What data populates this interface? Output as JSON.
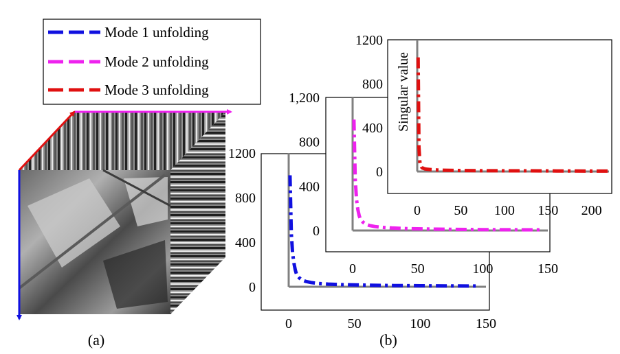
{
  "legend": {
    "entries": [
      {
        "label": "Mode 1 unfolding",
        "color": "#1010e0"
      },
      {
        "label": "Mode 2 unfolding",
        "color": "#ee22ee"
      },
      {
        "label": "Mode 3 unfolding",
        "color": "#e01010"
      }
    ]
  },
  "captions": {
    "a": "(a)",
    "b": "(b)"
  },
  "colors": {
    "axis": "#808080",
    "cube_x_arrow": "#ee22ee",
    "cube_y_arrow": "#e01010",
    "cube_z_arrow": "#1010e0"
  },
  "chart_data": [
    {
      "type": "line",
      "panel": "mode-1",
      "xlabel": "",
      "ylabel": "",
      "xlim": [
        0,
        150
      ],
      "ylim": [
        0,
        1200
      ],
      "xticks": [
        0,
        50,
        100,
        150
      ],
      "yticks": [
        0,
        400,
        800,
        1200
      ],
      "ytick_labels": [
        "0",
        "400",
        "800",
        "1200"
      ],
      "series": [
        {
          "x": [
            1,
            2,
            3,
            4,
            5,
            6,
            8,
            10,
            13,
            17,
            22,
            30,
            40,
            60,
            80,
            100,
            120,
            140,
            145
          ],
          "y": [
            1000,
            480,
            300,
            210,
            150,
            110,
            80,
            62,
            48,
            38,
            30,
            24,
            19,
            14,
            11,
            9,
            8,
            7,
            7
          ]
        }
      ]
    },
    {
      "type": "line",
      "panel": "mode-2",
      "xlabel": "",
      "ylabel": "",
      "xlim": [
        0,
        150
      ],
      "ylim": [
        0,
        1200
      ],
      "xticks": [
        0,
        50,
        100,
        150
      ],
      "yticks": [
        0,
        400,
        800,
        1200
      ],
      "ytick_labels": [
        "0",
        "400",
        "800",
        "1,200"
      ],
      "series": [
        {
          "x": [
            1,
            2,
            3,
            4,
            5,
            6,
            8,
            10,
            13,
            17,
            22,
            30,
            40,
            60,
            80,
            100,
            120,
            140,
            145
          ],
          "y": [
            1000,
            460,
            280,
            190,
            135,
            100,
            75,
            58,
            45,
            36,
            29,
            23,
            18,
            13,
            10,
            8,
            7,
            6,
            6
          ]
        }
      ]
    },
    {
      "type": "line",
      "panel": "mode-3",
      "xlabel": "",
      "ylabel": "Singular value",
      "xlim": [
        0,
        220
      ],
      "ylim": [
        0,
        1200
      ],
      "xticks": [
        0,
        50,
        100,
        150,
        200
      ],
      "yticks": [
        0,
        400,
        800,
        1200
      ],
      "ytick_labels": [
        "0",
        "400",
        "800",
        "1200"
      ],
      "series": [
        {
          "x": [
            1,
            2,
            3,
            4,
            5,
            6,
            8,
            10,
            15,
            20,
            30,
            50,
            80,
            120,
            160,
            200,
            220
          ],
          "y": [
            1040,
            220,
            90,
            55,
            40,
            32,
            26,
            22,
            18,
            15,
            12,
            9,
            7,
            6,
            5,
            4,
            4
          ]
        }
      ]
    }
  ]
}
